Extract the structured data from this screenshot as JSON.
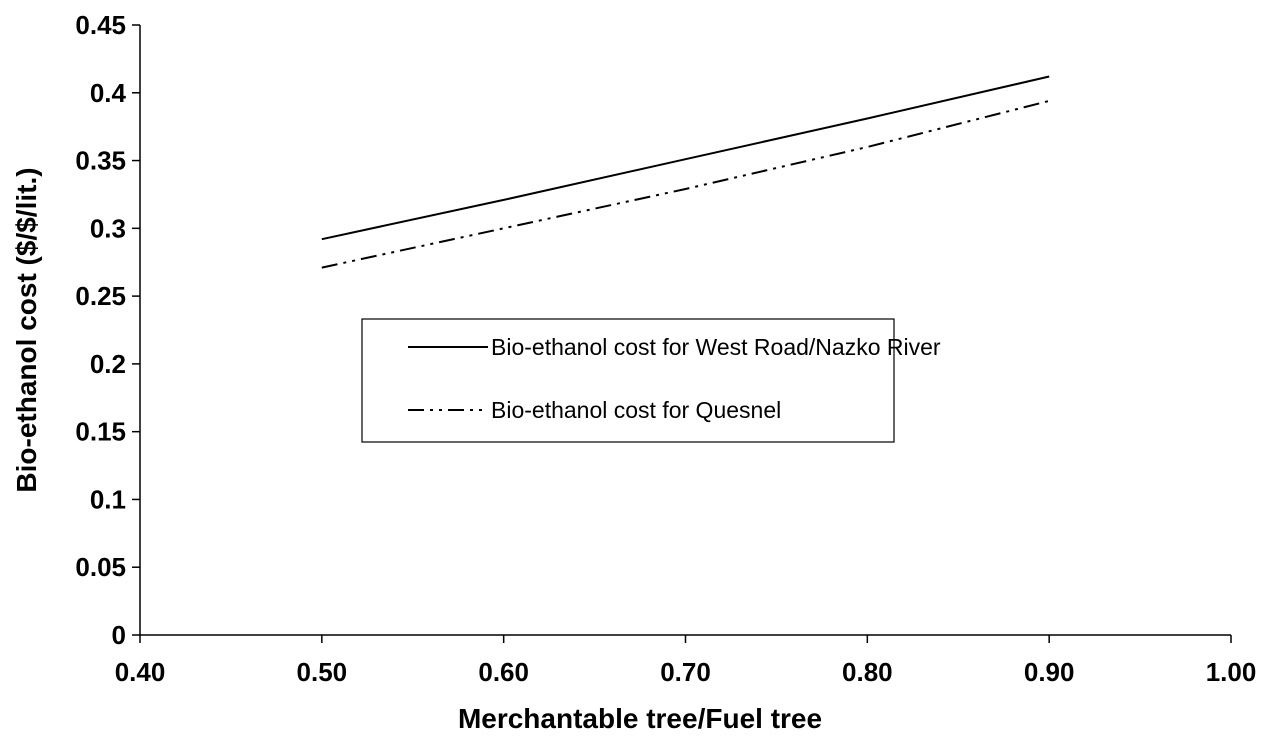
{
  "chart_data": {
    "type": "line",
    "title": "",
    "xlabel": "Merchantable tree/Fuel tree",
    "ylabel": "Bio-ethanol cost ($/$/lit.)",
    "xlim": [
      0.4,
      1.0
    ],
    "ylim": [
      0,
      0.45
    ],
    "x_ticks": [
      "0.40",
      "0.50",
      "0.60",
      "0.70",
      "0.80",
      "0.90",
      "1.00"
    ],
    "y_ticks": [
      "0",
      "0.05",
      "0.1",
      "0.15",
      "0.2",
      "0.25",
      "0.3",
      "0.35",
      "0.4",
      "0.45"
    ],
    "grid": false,
    "legend_position": "center",
    "series": [
      {
        "name": "Bio-ethanol cost for West Road/Nazko River",
        "line_style": "solid",
        "x": [
          0.5,
          0.6,
          0.7,
          0.8,
          0.9
        ],
        "y": [
          0.292,
          0.321,
          0.351,
          0.381,
          0.412
        ]
      },
      {
        "name": "Bio-ethanol cost for Quesnel",
        "line_style": "dash-dot-dot",
        "x": [
          0.5,
          0.6,
          0.7,
          0.8,
          0.9
        ],
        "y": [
          0.271,
          0.3,
          0.329,
          0.36,
          0.394
        ]
      }
    ]
  }
}
